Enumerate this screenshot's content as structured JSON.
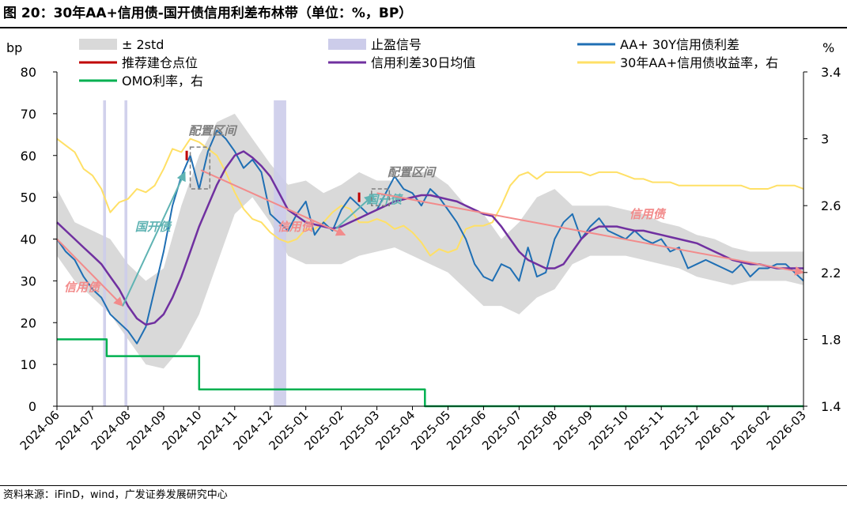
{
  "title": "图 20：30年AA+信用债-国开债信用利差布林带（单位：%，BP）",
  "source": "资料来源：iFinD，wind，广发证券发展研究中心",
  "chart_data": {
    "type": "line",
    "left_axis_label": "bp",
    "right_axis_label": "%",
    "ylim_left": [
      0,
      80
    ],
    "ylim_right": [
      1.4,
      3.4
    ],
    "yticks_left": [
      0,
      10,
      20,
      30,
      40,
      50,
      60,
      70,
      80
    ],
    "yticks_right": [
      1.4,
      1.8,
      2.2,
      2.6,
      3,
      3.4
    ],
    "x_ticks": [
      "2024-06",
      "2024-07",
      "2024-08",
      "2024-09",
      "2024-10",
      "2024-11",
      "2024-12",
      "2025-01",
      "2025-02",
      "2025-03",
      "2025-04",
      "2025-05",
      "2025-06",
      "2025-07",
      "2025-08",
      "2025-09",
      "2025-10",
      "2025-11",
      "2025-12",
      "2026-01",
      "2026-02",
      "2026-03"
    ],
    "grid": false,
    "legend": [
      {
        "label": "± 2std",
        "kind": "band",
        "color": "#d9d9d9"
      },
      {
        "label": "止盈信号",
        "kind": "bar",
        "color": "#ccccea"
      },
      {
        "label": "AA+ 30Y信用债利差",
        "kind": "line",
        "color": "#1f6fb4"
      },
      {
        "label": "推荐建仓点位",
        "kind": "line",
        "color": "#c00000"
      },
      {
        "label": "信用利差30日均值",
        "kind": "line",
        "color": "#7030a0"
      },
      {
        "label": "30年AA+信用债收益率，右",
        "kind": "line",
        "color": "#ffe066"
      },
      {
        "label": "OMO利率，右",
        "kind": "line",
        "color": "#00b050"
      }
    ],
    "series": [
      {
        "name": "信用利差30日均值",
        "axis": "left",
        "x": [
          0,
          0.25,
          0.5,
          0.75,
          1,
          1.25,
          1.5,
          1.75,
          2,
          2.25,
          2.5,
          2.75,
          3,
          3.25,
          3.5,
          3.75,
          4,
          4.25,
          4.5,
          4.75,
          5,
          5.25,
          5.5,
          5.75,
          6,
          6.25,
          6.5,
          6.75,
          7,
          7.25,
          7.5,
          7.75,
          8,
          8.25,
          8.5,
          8.75,
          9,
          9.25,
          9.5,
          9.75,
          10,
          10.25,
          10.5,
          10.75,
          11,
          11.25,
          11.5,
          11.75,
          12,
          12.25,
          12.5,
          12.75,
          13,
          13.25,
          13.5,
          13.75,
          14,
          14.25,
          14.5,
          14.75,
          15,
          15.25,
          15.5,
          15.75,
          16,
          16.25,
          16.5,
          16.75,
          17,
          17.25,
          17.5,
          17.75,
          18,
          18.25,
          18.5,
          18.75,
          19,
          19.25,
          19.5,
          19.75,
          20,
          20.25,
          20.5,
          20.75,
          21
        ],
        "y": [
          44,
          42,
          40,
          38,
          36,
          34,
          31,
          28,
          24,
          21,
          19.5,
          20,
          22,
          26,
          31,
          37,
          43,
          48,
          53,
          57,
          60,
          61,
          59.5,
          57.5,
          55,
          51,
          47,
          45.5,
          44,
          43.5,
          43,
          42.5,
          43,
          44,
          45,
          46,
          47,
          48,
          49,
          49.5,
          50,
          50.5,
          50.5,
          50,
          49.5,
          49,
          48,
          47,
          46,
          45.5,
          43,
          40,
          37,
          35,
          34,
          33,
          33,
          34,
          37,
          40,
          42,
          43,
          43,
          43,
          42.5,
          42,
          42,
          41.5,
          41,
          40.5,
          40,
          39.5,
          39,
          38,
          37,
          36,
          35,
          34.5,
          34,
          34,
          33.5,
          33,
          33,
          33,
          33
        ]
      },
      {
        "name": "AA+ 30Y信用债利差",
        "axis": "left",
        "x": [
          0,
          0.25,
          0.5,
          0.75,
          1,
          1.25,
          1.5,
          1.75,
          2,
          2.25,
          2.5,
          2.75,
          3,
          3.25,
          3.5,
          3.75,
          4,
          4.25,
          4.5,
          4.75,
          5,
          5.25,
          5.5,
          5.75,
          6,
          6.25,
          6.5,
          6.75,
          7,
          7.25,
          7.5,
          7.75,
          8,
          8.25,
          8.5,
          8.75,
          9,
          9.25,
          9.5,
          9.75,
          10,
          10.25,
          10.5,
          10.75,
          11,
          11.25,
          11.5,
          11.75,
          12,
          12.25,
          12.5,
          12.75,
          13,
          13.25,
          13.5,
          13.75,
          14,
          14.25,
          14.5,
          14.75,
          15,
          15.25,
          15.5,
          15.75,
          16,
          16.25,
          16.5,
          16.75,
          17,
          17.25,
          17.5,
          17.75,
          18,
          18.25,
          18.5,
          18.75,
          19,
          19.25,
          19.5,
          19.75,
          20,
          20.25,
          20.5,
          20.75,
          21
        ],
        "y": [
          40,
          37,
          35,
          31,
          28,
          26,
          22,
          20,
          18,
          15,
          19,
          28,
          37,
          48,
          55,
          60,
          52,
          61,
          66,
          64,
          61,
          57,
          59,
          56,
          46,
          44,
          42,
          46,
          49,
          41,
          44,
          42,
          47,
          50,
          48,
          46,
          47,
          51,
          55,
          52,
          51,
          48,
          52,
          50,
          47,
          44,
          40,
          34,
          31,
          30,
          34,
          33,
          30,
          38,
          31,
          32,
          40,
          44,
          46,
          40,
          43,
          45,
          42,
          41,
          40,
          42,
          40,
          39,
          40,
          37,
          38,
          33,
          34,
          35,
          34,
          33,
          32,
          34,
          31,
          33,
          33,
          34,
          34,
          32,
          30
        ]
      },
      {
        "name": "30年AA+信用债收益率，右",
        "axis": "right",
        "x": [
          0,
          0.25,
          0.5,
          0.75,
          1,
          1.25,
          1.5,
          1.75,
          2,
          2.25,
          2.5,
          2.75,
          3,
          3.25,
          3.5,
          3.75,
          4,
          4.25,
          4.5,
          4.75,
          5,
          5.25,
          5.5,
          5.75,
          6,
          6.25,
          6.5,
          6.75,
          7,
          7.25,
          7.5,
          7.75,
          8,
          8.25,
          8.5,
          8.75,
          9,
          9.25,
          9.5,
          9.75,
          10,
          10.25,
          10.5,
          10.75,
          11,
          11.25,
          11.5,
          11.75,
          12,
          12.25,
          12.5,
          12.75,
          13,
          13.25,
          13.5,
          13.75,
          14,
          14.25,
          14.5,
          14.75,
          15,
          15.25,
          15.5,
          15.75,
          16,
          16.25,
          16.5,
          16.75,
          17,
          17.25,
          17.5,
          17.75,
          18,
          18.25,
          18.5,
          18.75,
          19,
          19.25,
          19.5,
          19.75,
          20,
          20.25,
          20.5,
          20.75,
          21
        ],
        "y": [
          3.0,
          2.96,
          2.92,
          2.82,
          2.78,
          2.7,
          2.56,
          2.62,
          2.64,
          2.7,
          2.68,
          2.72,
          2.82,
          2.94,
          2.92,
          3.0,
          2.98,
          2.94,
          2.9,
          2.8,
          2.68,
          2.58,
          2.52,
          2.5,
          2.44,
          2.4,
          2.38,
          2.4,
          2.46,
          2.46,
          2.5,
          2.56,
          2.6,
          2.58,
          2.5,
          2.5,
          2.52,
          2.5,
          2.46,
          2.48,
          2.44,
          2.38,
          2.3,
          2.34,
          2.32,
          2.34,
          2.46,
          2.48,
          2.48,
          2.5,
          2.6,
          2.72,
          2.78,
          2.8,
          2.76,
          2.8,
          2.8,
          2.8,
          2.8,
          2.8,
          2.78,
          2.8,
          2.8,
          2.8,
          2.78,
          2.76,
          2.76,
          2.74,
          2.74,
          2.74,
          2.72,
          2.72,
          2.72,
          2.72,
          2.72,
          2.72,
          2.72,
          2.72,
          2.7,
          2.7,
          2.7,
          2.72,
          2.72,
          2.72,
          2.7
        ]
      },
      {
        "name": "OMO利率，右",
        "axis": "right",
        "shape": "step",
        "x": [
          0,
          1.4,
          1.4,
          4,
          4,
          10.35,
          10.35,
          21
        ],
        "y": [
          1.8,
          1.8,
          1.7,
          1.7,
          1.5,
          1.5,
          1.4,
          1.4
        ]
      }
    ],
    "band": {
      "name": "± 2std",
      "axis": "left",
      "x": [
        0,
        0.5,
        1,
        1.5,
        2,
        2.5,
        3,
        3.5,
        4,
        4.5,
        5,
        5.5,
        6,
        6.5,
        7,
        7.5,
        8,
        8.5,
        9,
        9.5,
        10,
        10.5,
        11,
        11.5,
        12,
        12.5,
        13,
        13.5,
        14,
        14.5,
        15,
        15.5,
        16,
        16.5,
        17,
        17.5,
        18,
        18.5,
        19,
        19.5,
        20,
        20.5,
        21
      ],
      "upper": [
        52,
        44,
        42,
        40,
        34,
        30,
        33,
        48,
        60,
        68,
        70,
        64,
        58,
        53,
        54,
        51,
        53,
        56,
        54,
        54,
        56,
        56,
        53,
        48,
        46,
        40,
        44,
        50,
        52,
        48,
        48,
        48,
        47,
        46,
        44,
        43,
        41,
        40,
        38,
        37,
        37,
        37,
        37
      ],
      "lower": [
        36,
        30,
        26,
        22,
        16,
        10,
        9,
        14,
        22,
        34,
        46,
        50,
        44,
        36,
        34,
        34,
        34,
        36,
        37,
        38,
        36,
        34,
        32,
        28,
        24,
        24,
        22,
        26,
        28,
        34,
        36,
        36,
        36,
        35,
        34,
        33,
        31,
        30,
        29,
        30,
        30,
        30,
        29
      ]
    },
    "signal_bars": [
      {
        "from": 1.3,
        "to": 1.38
      },
      {
        "from": 1.9,
        "to": 1.98
      },
      {
        "from": 6.1,
        "to": 6.45
      }
    ],
    "build_points": [
      {
        "x": 3.65,
        "y": 60
      },
      {
        "x": 8.5,
        "y": 50
      }
    ],
    "trend_arrows": [
      {
        "from": [
          0,
          40
        ],
        "to": [
          1.85,
          24
        ],
        "color": "#f28b8b",
        "label": "信用债",
        "label_at": [
          0.2,
          27.5
        ]
      },
      {
        "from": [
          1.85,
          24
        ],
        "to": [
          3.6,
          56
        ],
        "color": "#5fb3b3",
        "label": "国开债",
        "label_at": [
          2.2,
          42
        ]
      },
      {
        "from": [
          4.05,
          56.5
        ],
        "to": [
          8.1,
          41
        ],
        "color": "#f28b8b",
        "label": "信用债",
        "label_at": [
          6.2,
          42
        ]
      },
      {
        "from": [
          7.85,
          42.5
        ],
        "to": [
          8.9,
          50.5
        ],
        "color": "#5fb3b3",
        "label": "国开债",
        "label_at": [
          8.7,
          48.5
        ]
      },
      {
        "from": [
          9.0,
          51
        ],
        "to": [
          21,
          32
        ],
        "color": "#f28b8b",
        "label": "信用债",
        "label_at": [
          16.1,
          45
        ]
      }
    ],
    "peak_boxes": [
      {
        "x0": 3.75,
        "x1": 4.3,
        "y0": 52,
        "y1": 62,
        "label": "配置区间",
        "label_at": [
          3.7,
          65
        ]
      },
      {
        "x0": 8.85,
        "x1": 9.35,
        "y0": 48,
        "y1": 52,
        "label": "配置区间",
        "label_at": [
          9.3,
          55
        ]
      }
    ]
  }
}
